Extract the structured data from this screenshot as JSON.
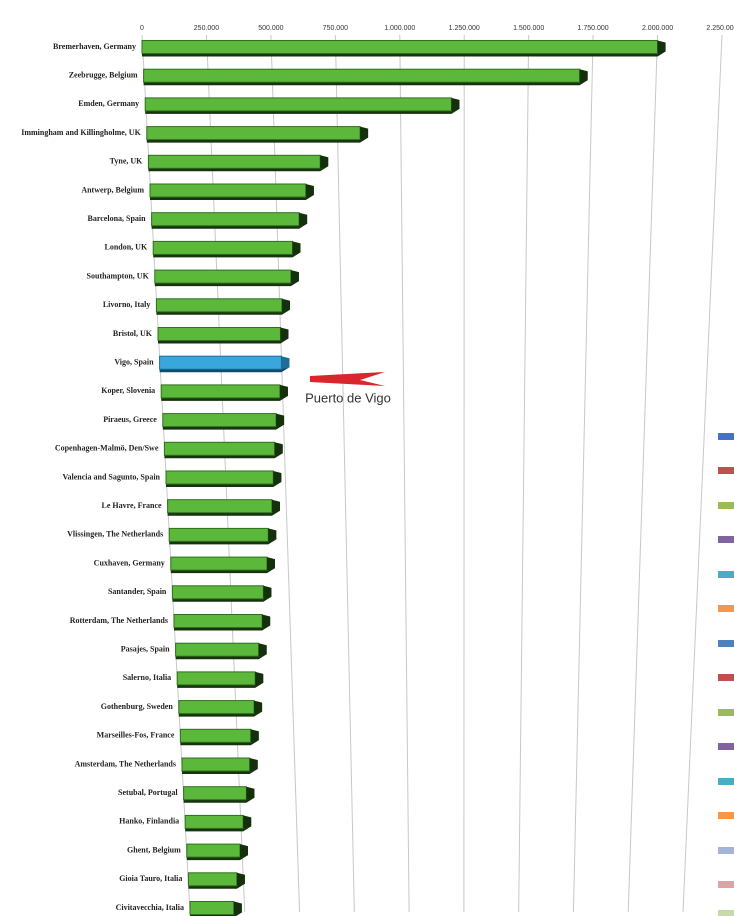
{
  "chart_data": {
    "type": "bar",
    "categories": [
      "Bremerhaven, Germany",
      "Zeebrugge, Belgium",
      "Emden, Germany",
      "Immingham and Killingholme, UK",
      "Tyne, UK",
      "Antwerp, Belgium",
      "Barcelona, Spain",
      "London, UK",
      "Southampton, UK",
      "Livorno, Italy",
      "Bristol, UK",
      "Vigo, Spain",
      "Koper, Slovenia",
      "Piraeus, Greece",
      "Copenhagen-Malmö, Den/Swe",
      "Valencia and Sagunto, Spain",
      "Le Havre, France",
      "Vlissingen, The Netherlands",
      "Cuxhaven, Germany",
      "Santander, Spain",
      "Rotterdam, The Netherlands",
      "Pasajes, Spain",
      "Salerno, Italia",
      "Gothenburg, Sweden",
      "Marseilles-Fos, France",
      "Amsterdam, The Netherlands",
      "Setubal, Portugal",
      "Hanko, Finlandia",
      "Ghent, Belgium",
      "Gioia Tauro, Italia",
      "Civitavecchia, Italia"
    ],
    "values": [
      2000000,
      1700000,
      1200000,
      840000,
      680000,
      620000,
      590000,
      560000,
      550000,
      510000,
      500000,
      500000,
      490000,
      470000,
      460000,
      450000,
      440000,
      420000,
      410000,
      390000,
      380000,
      360000,
      340000,
      330000,
      310000,
      300000,
      280000,
      260000,
      240000,
      220000,
      200000
    ],
    "color": "#5cb83a",
    "highlight_color": "#3aa7dc",
    "highlight_category": "Vigo, Spain",
    "annotation": "Puerto de Vigo",
    "xlim": [
      0,
      2250000
    ],
    "xticks": [
      0,
      {
        "value": 250000,
        "label": "250.000"
      },
      {
        "value": 500000,
        "label": "500.000"
      },
      {
        "value": 750000,
        "label": "750.000"
      },
      {
        "value": 1000000,
        "label": "1.000.000"
      },
      {
        "value": 1250000,
        "label": "1.250.000"
      },
      {
        "value": 1500000,
        "label": "1.500.000"
      },
      {
        "value": 1750000,
        "label": "1.750.000"
      },
      {
        "value": 2000000,
        "label": "2.000.000"
      },
      {
        "value": 2250000,
        "label": "2.250.000"
      }
    ],
    "grid": true
  }
}
